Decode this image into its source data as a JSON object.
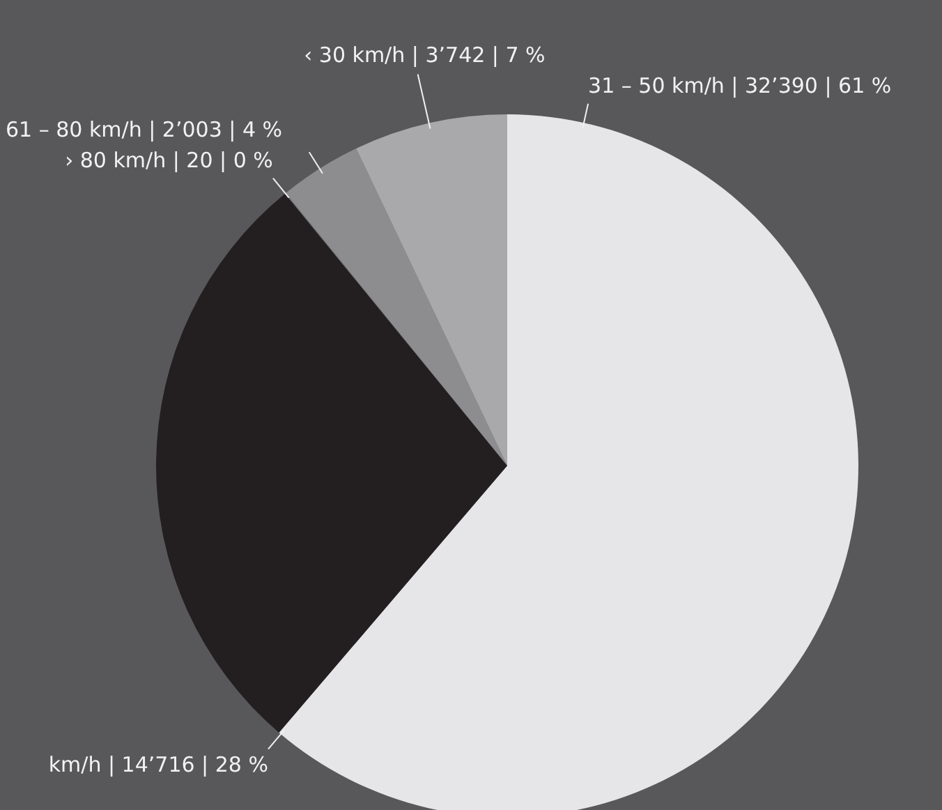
{
  "chart_data": {
    "type": "pie",
    "categories": [
      "31 – 50 km/h | 32’390 | 61 %",
      "km/h | 14’716 | 28 %",
      "› 80 km/h | 20 | 0 %",
      "61 – 80 km/h | 2’003 | 4 %",
      "‹ 30 km/h | 3’742 | 7 %"
    ],
    "values": [
      32390,
      14716,
      20,
      2003,
      3742
    ],
    "colors": [
      "#e6e6e8",
      "#231f20",
      "#6f6f71",
      "#8d8d8f",
      "#a9a9ab"
    ]
  }
}
